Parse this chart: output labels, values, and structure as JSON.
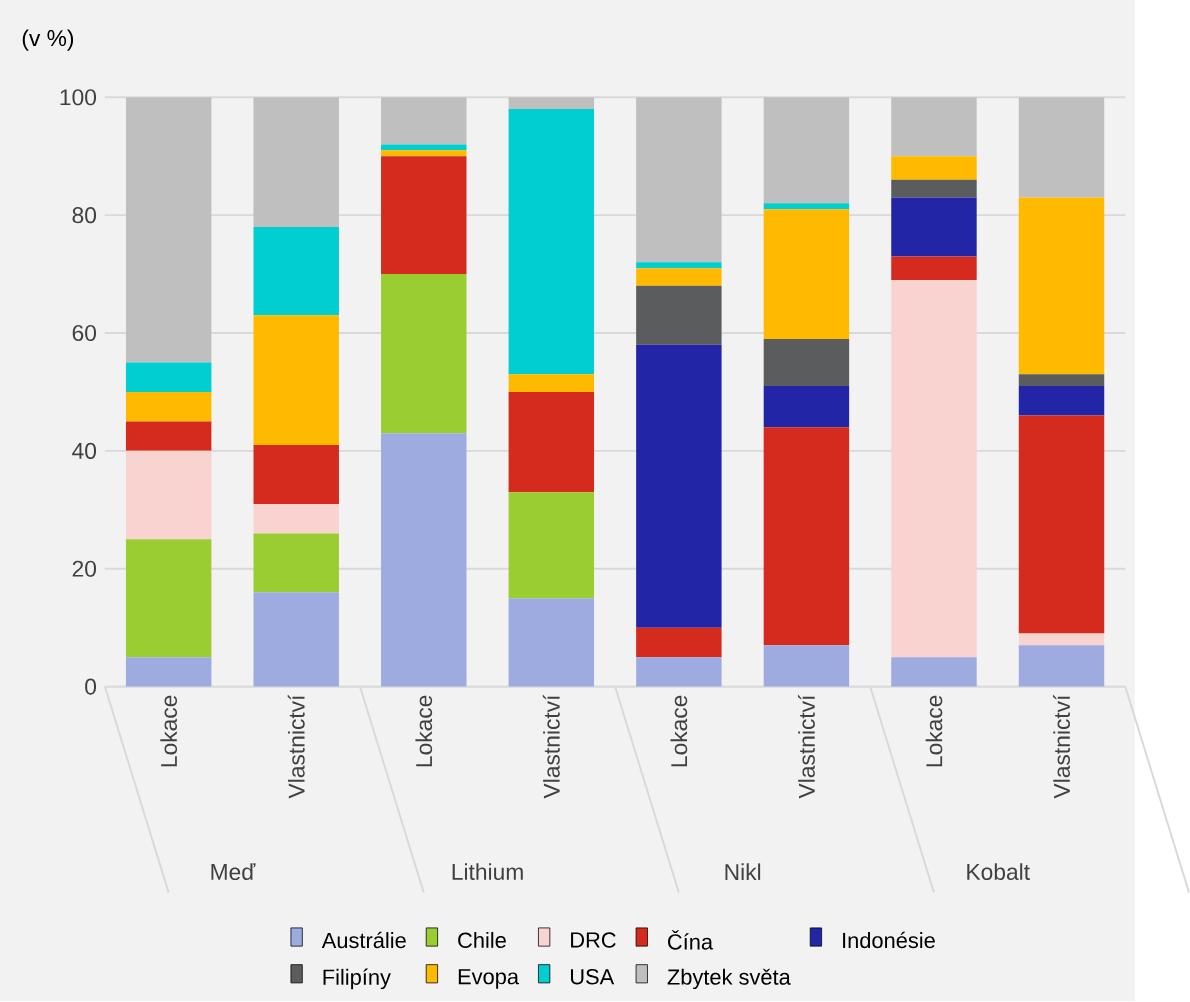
{
  "chart_data": {
    "type": "bar",
    "stacked": true,
    "ylabel": "(v %)",
    "categories": [
      "Lokace",
      "Vlastnictví",
      "Lokace",
      "Vlastnictví",
      "Lokace",
      "Vlastnictví",
      "Lokace",
      "Vlastnictví"
    ],
    "annotations": [
      "Meď",
      "Lithium",
      "Nikl",
      "Kobalt"
    ],
    "series": [
      {
        "name": "Austrálie",
        "color": "#9dabe1",
        "values": [
          5,
          16,
          43,
          15,
          5,
          7,
          5,
          7
        ]
      },
      {
        "name": "Chile",
        "color": "#9acd32",
        "values": [
          20,
          10,
          27,
          18,
          0,
          0,
          0,
          0
        ]
      },
      {
        "name": "DRC",
        "color": "#f8d3d0",
        "values": [
          15,
          5,
          0,
          0,
          0,
          0,
          64,
          2
        ]
      },
      {
        "name": "Čína",
        "color": "#d52b1e",
        "values": [
          5,
          10,
          20,
          17,
          5,
          37,
          4,
          37
        ]
      },
      {
        "name": "Indonésie",
        "color": "#2226a6",
        "values": [
          0,
          0,
          0,
          0,
          48,
          7,
          10,
          5
        ]
      },
      {
        "name": "Filipíny",
        "color": "#5a5c5e",
        "values": [
          0,
          0,
          0,
          0,
          10,
          8,
          3,
          2
        ]
      },
      {
        "name": "Evopa",
        "color": "#ffba00",
        "values": [
          5,
          22,
          1,
          3,
          3,
          22,
          4,
          30
        ]
      },
      {
        "name": "USA",
        "color": "#00ced1",
        "values": [
          5,
          15,
          1,
          45,
          1,
          1,
          0,
          0
        ]
      },
      {
        "name": "Zbytek světa",
        "color": "#bfbfbf",
        "values": [
          45,
          22,
          8,
          2,
          28,
          18,
          10,
          17
        ]
      }
    ],
    "ylim": [
      0,
      100
    ],
    "yticks": [
      0,
      20,
      40,
      60,
      80,
      100
    ],
    "grid": "y",
    "legend": "bottom"
  }
}
